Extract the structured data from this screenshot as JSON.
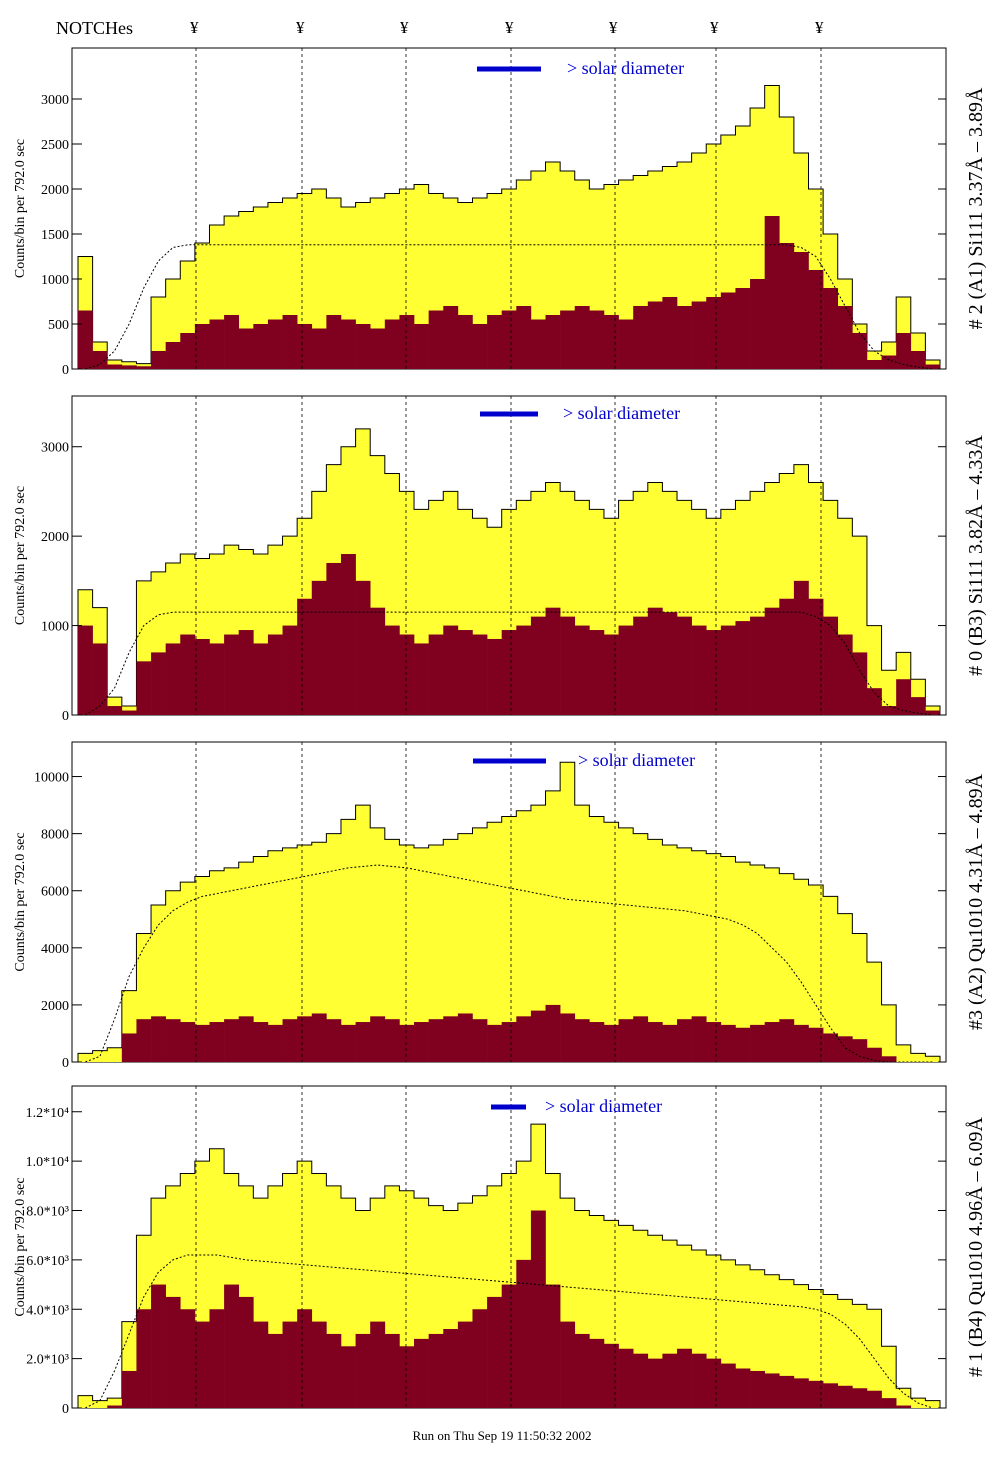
{
  "header": {
    "notches_label": "NOTCHes",
    "notch_symbol": "¥",
    "notch_positions": [
      196,
      302,
      406,
      511,
      615,
      716,
      821
    ]
  },
  "footer": {
    "run_text": "Run on Thu Sep 19 11:50:32 2002"
  },
  "colors": {
    "fill_light": "#ffff33",
    "fill_dark": "#800020",
    "annotation_blue": "#0000cc",
    "frame": "#000000"
  },
  "chart_data": [
    {
      "type": "bar",
      "title": "# 2 (A1) Si111  3.37Å – 3.89Å",
      "ylabel": "Counts/bin per    792.0 sec",
      "legend_text": "> solar diameter",
      "ylim": [
        0,
        3500
      ],
      "yticks": [
        0,
        500,
        1000,
        1500,
        2000,
        2500,
        3000
      ],
      "ytick_labels": [
        "0",
        "500",
        "1000",
        "1500",
        "2000",
        "2500",
        "3000"
      ],
      "series": [
        {
          "name": "yellow",
          "values": [
            1250,
            300,
            100,
            80,
            60,
            800,
            1000,
            1200,
            1400,
            1600,
            1700,
            1750,
            1800,
            1850,
            1900,
            1950,
            2000,
            1900,
            1800,
            1850,
            1900,
            1950,
            2000,
            2050,
            1950,
            1900,
            1850,
            1900,
            1950,
            2000,
            2100,
            2200,
            2300,
            2200,
            2100,
            2000,
            2050,
            2100,
            2150,
            2200,
            2250,
            2300,
            2400,
            2500,
            2600,
            2700,
            2900,
            3150,
            2800,
            2400,
            2000,
            1500,
            1000,
            500,
            200,
            300,
            800,
            400,
            100
          ]
        },
        {
          "name": "dark",
          "values": [
            650,
            200,
            50,
            40,
            30,
            200,
            300,
            400,
            500,
            550,
            600,
            450,
            500,
            550,
            600,
            500,
            450,
            600,
            550,
            500,
            450,
            550,
            600,
            500,
            650,
            700,
            600,
            500,
            600,
            650,
            700,
            550,
            600,
            650,
            700,
            650,
            600,
            550,
            700,
            750,
            800,
            700,
            750,
            800,
            850,
            900,
            1000,
            1700,
            1400,
            1300,
            1100,
            900,
            700,
            400,
            100,
            150,
            400,
            200,
            50
          ]
        },
        {
          "name": "dotted",
          "values": [
            0,
            50,
            200,
            500,
            900,
            1200,
            1350,
            1380,
            1380,
            1380,
            1380,
            1380,
            1380,
            1380,
            1380,
            1380,
            1380,
            1380,
            1380,
            1380,
            1380,
            1380,
            1380,
            1380,
            1380,
            1380,
            1380,
            1380,
            1380,
            1380,
            1380,
            1380,
            1380,
            1380,
            1380,
            1380,
            1380,
            1380,
            1380,
            1380,
            1380,
            1380,
            1380,
            1380,
            1380,
            1380,
            1380,
            1380,
            1380,
            1350,
            1250,
            1000,
            700,
            400,
            200,
            100,
            50,
            20,
            0
          ]
        }
      ]
    },
    {
      "type": "bar",
      "title": "# 0 (B3) Si111  3.82Å – 4.33Å",
      "ylabel": "Counts/bin per    792.0 sec",
      "legend_text": "> solar diameter",
      "ylim": [
        0,
        3500
      ],
      "yticks": [
        0,
        1000,
        2000,
        3000
      ],
      "ytick_labels": [
        "0",
        "1000",
        "2000",
        "3000"
      ],
      "series": [
        {
          "name": "yellow",
          "values": [
            1400,
            1200,
            200,
            100,
            1500,
            1600,
            1700,
            1800,
            1750,
            1800,
            1900,
            1850,
            1800,
            1900,
            2000,
            2200,
            2500,
            2800,
            3000,
            3200,
            2900,
            2700,
            2500,
            2300,
            2400,
            2500,
            2300,
            2200,
            2100,
            2300,
            2400,
            2500,
            2600,
            2500,
            2400,
            2300,
            2200,
            2400,
            2500,
            2600,
            2500,
            2400,
            2300,
            2200,
            2300,
            2400,
            2500,
            2600,
            2700,
            2800,
            2600,
            2400,
            2200,
            2000,
            1000,
            500,
            700,
            400,
            100
          ]
        },
        {
          "name": "dark",
          "values": [
            1000,
            800,
            100,
            50,
            600,
            700,
            800,
            900,
            850,
            800,
            900,
            950,
            800,
            900,
            1000,
            1300,
            1500,
            1700,
            1800,
            1500,
            1200,
            1000,
            900,
            800,
            900,
            1000,
            950,
            900,
            850,
            950,
            1000,
            1100,
            1200,
            1100,
            1000,
            950,
            900,
            1000,
            1100,
            1200,
            1150,
            1100,
            1000,
            950,
            1000,
            1050,
            1100,
            1200,
            1300,
            1500,
            1300,
            1100,
            900,
            700,
            300,
            100,
            400,
            200,
            50
          ]
        },
        {
          "name": "dotted",
          "values": [
            0,
            100,
            300,
            700,
            1000,
            1120,
            1150,
            1150,
            1150,
            1150,
            1150,
            1150,
            1150,
            1150,
            1150,
            1150,
            1150,
            1150,
            1150,
            1150,
            1150,
            1150,
            1150,
            1150,
            1150,
            1150,
            1150,
            1150,
            1150,
            1150,
            1150,
            1150,
            1150,
            1150,
            1150,
            1150,
            1150,
            1150,
            1150,
            1150,
            1150,
            1150,
            1150,
            1150,
            1150,
            1150,
            1150,
            1150,
            1150,
            1150,
            1100,
            1000,
            800,
            500,
            250,
            100,
            50,
            20,
            0
          ]
        }
      ]
    },
    {
      "type": "bar",
      "title": "#3 (A2) Qu1010  4.31Å – 4.89Å",
      "ylabel": "Counts/bin per    792.0 sec",
      "legend_text": "> solar diameter",
      "ylim": [
        0,
        11000
      ],
      "yticks": [
        0,
        2000,
        4000,
        6000,
        8000,
        10000
      ],
      "ytick_labels": [
        "0",
        "2000",
        "4000",
        "6000",
        "8000",
        "10000"
      ],
      "series": [
        {
          "name": "yellow",
          "values": [
            300,
            400,
            500,
            2500,
            4500,
            5500,
            6000,
            6300,
            6500,
            6700,
            6800,
            7000,
            7200,
            7400,
            7500,
            7600,
            7700,
            8000,
            8500,
            9000,
            8200,
            7800,
            7600,
            7500,
            7600,
            7800,
            8000,
            8200,
            8400,
            8600,
            8800,
            9000,
            9500,
            10500,
            9000,
            8600,
            8400,
            8200,
            8000,
            7800,
            7600,
            7500,
            7400,
            7300,
            7200,
            7000,
            6900,
            6800,
            6600,
            6400,
            6200,
            5800,
            5200,
            4500,
            3500,
            2000,
            600,
            300,
            200
          ]
        },
        {
          "name": "dark",
          "values": [
            0,
            0,
            0,
            1000,
            1500,
            1600,
            1500,
            1400,
            1300,
            1400,
            1500,
            1600,
            1400,
            1300,
            1500,
            1600,
            1700,
            1500,
            1300,
            1400,
            1600,
            1500,
            1300,
            1400,
            1500,
            1600,
            1700,
            1500,
            1300,
            1400,
            1600,
            1800,
            2000,
            1700,
            1500,
            1400,
            1300,
            1500,
            1600,
            1400,
            1300,
            1500,
            1600,
            1400,
            1300,
            1200,
            1300,
            1400,
            1500,
            1300,
            1200,
            1000,
            900,
            800,
            500,
            200,
            0,
            0,
            0
          ]
        },
        {
          "name": "dotted",
          "values": [
            0,
            200,
            1500,
            3000,
            4000,
            4800,
            5300,
            5600,
            5800,
            5900,
            6000,
            6100,
            6200,
            6300,
            6400,
            6500,
            6600,
            6700,
            6800,
            6850,
            6900,
            6850,
            6800,
            6700,
            6600,
            6500,
            6400,
            6300,
            6200,
            6100,
            6000,
            5900,
            5800,
            5700,
            5650,
            5600,
            5550,
            5500,
            5450,
            5400,
            5350,
            5300,
            5200,
            5100,
            5000,
            4800,
            4500,
            4000,
            3500,
            2800,
            2000,
            1200,
            500,
            200,
            50,
            0,
            0,
            0,
            0
          ]
        }
      ]
    },
    {
      "type": "bar",
      "title": "# 1 (B4) Qu1010 4.96Å – 6.09Å",
      "ylabel": "Counts/bin per    792.0 sec",
      "legend_text": "> solar diameter",
      "ylim": [
        0,
        12800
      ],
      "yticks": [
        0,
        2000,
        4000,
        6000,
        8000,
        10000,
        12000
      ],
      "ytick_labels": [
        "0",
        "2.0*10³",
        "4.0*10³",
        "6.0*10³",
        "8.0*10³",
        "1.0*10⁴",
        "1.2*10⁴"
      ],
      "series": [
        {
          "name": "yellow",
          "values": [
            500,
            300,
            400,
            3500,
            7000,
            8500,
            9000,
            9500,
            10000,
            10500,
            9500,
            9000,
            8500,
            9000,
            9500,
            10000,
            9500,
            9000,
            8500,
            8000,
            8500,
            9000,
            8800,
            8500,
            8200,
            8000,
            8300,
            8600,
            9000,
            9500,
            10000,
            11500,
            9500,
            8500,
            8000,
            7800,
            7600,
            7400,
            7200,
            7000,
            6800,
            6600,
            6400,
            6200,
            6000,
            5800,
            5600,
            5400,
            5200,
            5000,
            4800,
            4600,
            4400,
            4200,
            4000,
            2500,
            800,
            400,
            300
          ]
        },
        {
          "name": "dark",
          "values": [
            0,
            0,
            100,
            1500,
            4000,
            5000,
            4500,
            4000,
            3500,
            4000,
            5000,
            4500,
            3500,
            3000,
            3500,
            4000,
            3500,
            3000,
            2500,
            3000,
            3500,
            3000,
            2500,
            2800,
            3000,
            3200,
            3500,
            4000,
            4500,
            5000,
            6000,
            8000,
            5000,
            3500,
            3000,
            2800,
            2600,
            2400,
            2200,
            2000,
            2200,
            2400,
            2200,
            2000,
            1800,
            1600,
            1500,
            1400,
            1300,
            1200,
            1100,
            1000,
            900,
            800,
            700,
            400,
            100,
            0,
            0
          ]
        },
        {
          "name": "dotted",
          "values": [
            0,
            300,
            1500,
            3000,
            4500,
            5500,
            6000,
            6200,
            6200,
            6200,
            6100,
            6000,
            5950,
            5900,
            5850,
            5800,
            5750,
            5700,
            5650,
            5600,
            5550,
            5500,
            5450,
            5400,
            5350,
            5300,
            5250,
            5200,
            5150,
            5100,
            5050,
            5000,
            4950,
            4900,
            4850,
            4800,
            4750,
            4700,
            4650,
            4600,
            4550,
            4500,
            4450,
            4400,
            4350,
            4300,
            4250,
            4200,
            4150,
            4100,
            4000,
            3800,
            3400,
            2800,
            2000,
            1200,
            600,
            200,
            0
          ]
        }
      ]
    }
  ]
}
